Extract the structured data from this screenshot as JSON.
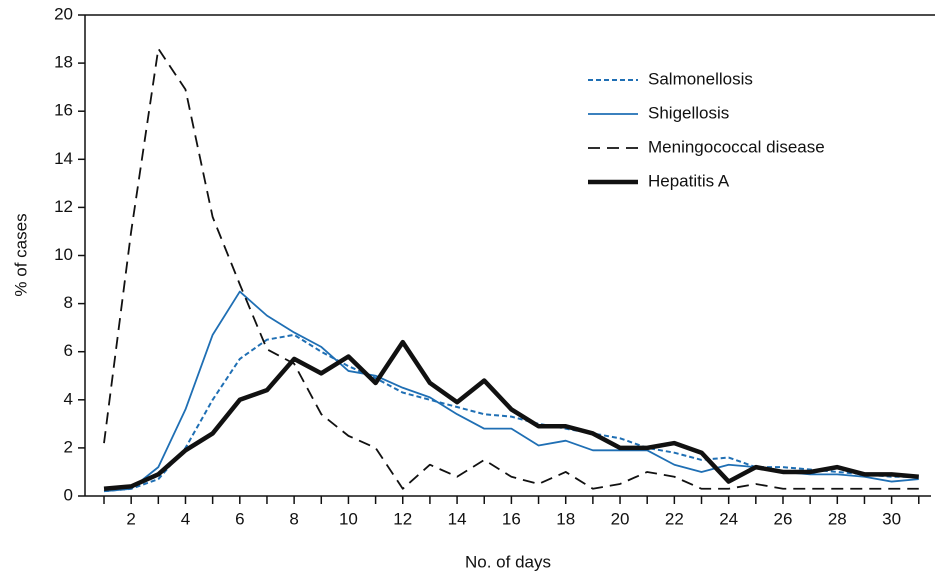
{
  "chart_data": {
    "type": "line",
    "x_label": "No. of days",
    "y_label": "% of cases",
    "x": [
      1,
      2,
      3,
      4,
      5,
      6,
      7,
      8,
      9,
      10,
      11,
      12,
      13,
      14,
      15,
      16,
      17,
      18,
      19,
      20,
      21,
      22,
      23,
      24,
      25,
      26,
      27,
      28,
      29,
      30,
      31
    ],
    "series": [
      {
        "name": "Salmonellosis",
        "color": "#1f6fb4",
        "dash": "dotted",
        "values": [
          0.2,
          0.3,
          0.7,
          2.0,
          4.0,
          5.7,
          6.5,
          6.7,
          6.0,
          5.4,
          4.9,
          4.3,
          4.0,
          3.7,
          3.4,
          3.3,
          3.0,
          2.8,
          2.6,
          2.4,
          2.0,
          1.8,
          1.5,
          1.6,
          1.2,
          1.2,
          1.1,
          1.0,
          0.9,
          0.8,
          0.8
        ]
      },
      {
        "name": "Shigellosis",
        "color": "#1f6fb4",
        "dash": "solid",
        "values": [
          0.2,
          0.3,
          1.2,
          3.6,
          6.7,
          8.5,
          7.5,
          6.8,
          6.2,
          5.2,
          5.0,
          4.5,
          4.1,
          3.4,
          2.8,
          2.8,
          2.1,
          2.3,
          1.9,
          1.9,
          1.9,
          1.3,
          1.0,
          1.3,
          1.2,
          1.0,
          0.9,
          0.9,
          0.8,
          0.6,
          0.7
        ]
      },
      {
        "name": "Meningococcal disease",
        "color": "#111111",
        "dash": "dashed",
        "values": [
          2.2,
          11.0,
          18.6,
          16.9,
          11.6,
          8.8,
          6.1,
          5.5,
          3.4,
          2.5,
          2.0,
          0.3,
          1.3,
          0.8,
          1.5,
          0.8,
          0.5,
          1.0,
          0.3,
          0.5,
          1.0,
          0.8,
          0.3,
          0.3,
          0.5,
          0.3,
          0.3,
          0.3,
          0.3,
          0.3,
          0.3
        ]
      },
      {
        "name": "Hepatitis A",
        "color": "#111111",
        "dash": "thick",
        "values": [
          0.3,
          0.4,
          0.9,
          1.9,
          2.6,
          4.0,
          4.4,
          5.7,
          5.1,
          5.8,
          4.7,
          6.4,
          4.7,
          3.9,
          4.8,
          3.6,
          2.9,
          2.9,
          2.6,
          2.0,
          2.0,
          2.2,
          1.8,
          0.6,
          1.2,
          1.0,
          1.0,
          1.2,
          0.9,
          0.9,
          0.8
        ]
      }
    ],
    "xlim": [
      0.3,
      31.45
    ],
    "ylim": [
      0,
      20
    ],
    "xticks": [
      2,
      4,
      6,
      8,
      10,
      12,
      14,
      16,
      18,
      20,
      22,
      24,
      26,
      28,
      30
    ],
    "xminor_ticks": [
      1,
      3,
      5,
      7,
      9,
      11,
      13,
      15,
      17,
      19,
      21,
      23,
      25,
      27,
      29,
      31
    ],
    "yticks": [
      0,
      2,
      4,
      6,
      8,
      10,
      12,
      14,
      16,
      18,
      20
    ],
    "grid": false,
    "legend": "upper right"
  }
}
